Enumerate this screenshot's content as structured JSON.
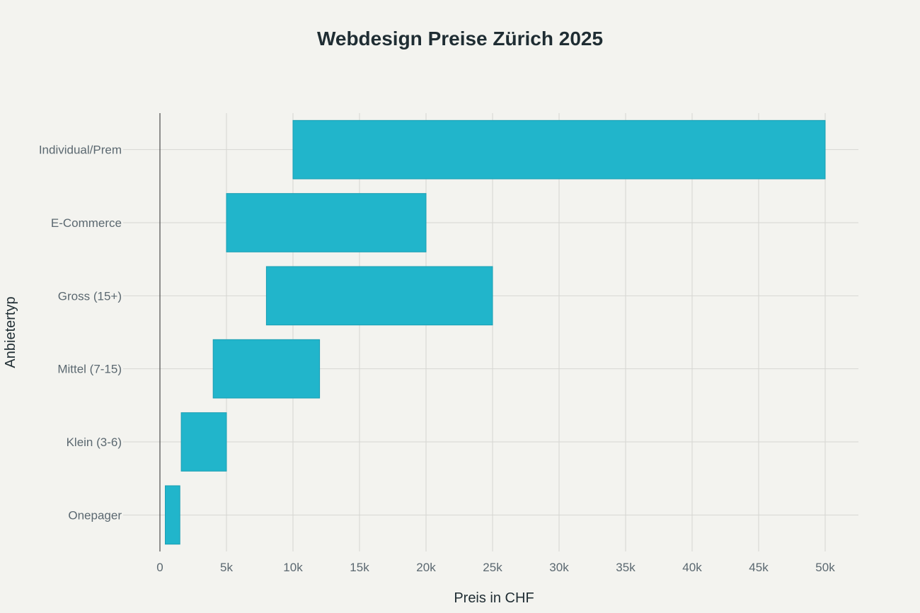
{
  "chart_data": {
    "type": "bar",
    "orientation": "horizontal",
    "bar_style": "range",
    "title": "Webdesign Preise Zürich 2025",
    "xlabel": "Preis in CHF",
    "ylabel": "Anbietertyp",
    "xlim": [
      0,
      52500
    ],
    "x_ticks": [
      0,
      5000,
      10000,
      15000,
      20000,
      25000,
      30000,
      35000,
      40000,
      45000,
      50000
    ],
    "x_tick_labels": [
      "0",
      "5k",
      "10k",
      "15k",
      "20k",
      "25k",
      "30k",
      "35k",
      "40k",
      "45k",
      "50k"
    ],
    "categories": [
      "Individual/Prem",
      "E-Commerce",
      "Gross (15+)",
      "Mittel (7-15)",
      "Klein (3-6)",
      "Onepager"
    ],
    "ranges": [
      {
        "min": 10000,
        "max": 50000
      },
      {
        "min": 5000,
        "max": 20000
      },
      {
        "min": 8000,
        "max": 25000
      },
      {
        "min": 4000,
        "max": 12000
      },
      {
        "min": 1600,
        "max": 5000
      },
      {
        "min": 400,
        "max": 1500
      }
    ],
    "grid": true,
    "legend": "none",
    "colors": {
      "bar": "#21b5cb",
      "bar_stroke": "#1a9fb3",
      "grid": "#d6d6d2",
      "axis": "#4a4a4a",
      "background": "#f3f3ef"
    }
  }
}
